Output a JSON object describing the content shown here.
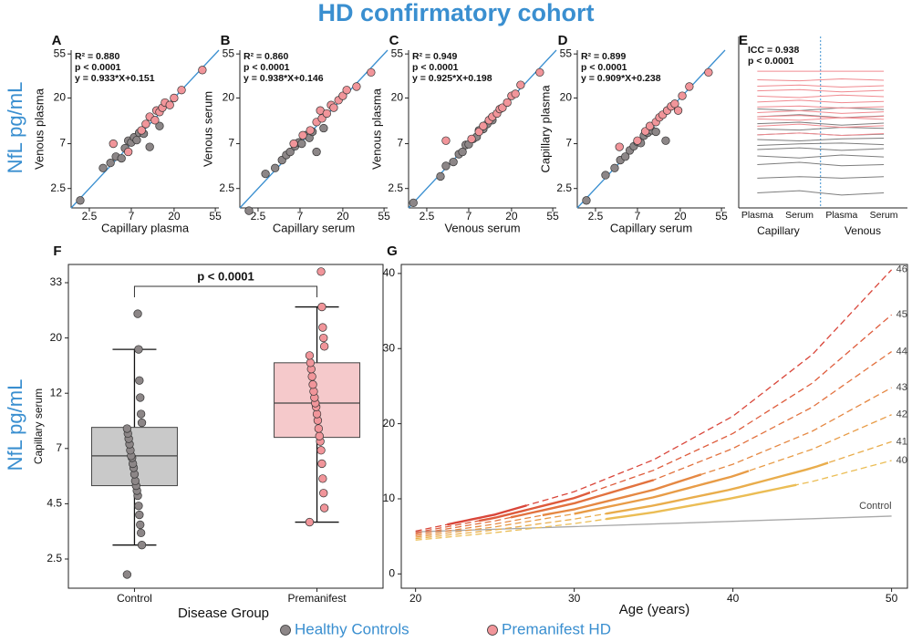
{
  "title": "HD confirmatory cohort",
  "side_labels": [
    "NfL pg/mL",
    "NfL pg/mL"
  ],
  "legend": [
    {
      "name": "Healthy Controls",
      "color": "#8c8687"
    },
    {
      "name": "Premanifest HD",
      "color": "#f1959a"
    }
  ],
  "chart_data": [
    {
      "type": "scatter",
      "panel": "A",
      "xlabel": "Capillary plasma",
      "ylabel": "Venous plasma",
      "log": true,
      "annotations": [
        "R² = 0.880",
        "p < 0.0001",
        "y = 0.933*X+0.151"
      ],
      "xlim": [
        1.6,
        60
      ],
      "ylim": [
        1.6,
        60
      ],
      "xticks": [
        2.5,
        7,
        20,
        55
      ],
      "yticks": [
        2.5,
        7,
        20,
        55
      ],
      "series": [
        {
          "color": "#8c8687",
          "x": [
            2.0,
            3.5,
            4.2,
            4.8,
            5.5,
            6.0,
            6.5,
            7.0,
            7.5,
            8.0,
            8.5,
            9.5,
            11,
            14
          ],
          "y": [
            1.9,
            4.0,
            4.5,
            5.2,
            5.0,
            6.3,
            7.5,
            7.2,
            8.1,
            7.6,
            9.0,
            8.8,
            6.5,
            10.5
          ]
        },
        {
          "color": "#f1959a",
          "x": [
            4.5,
            6.5,
            9,
            10,
            11,
            12.5,
            13,
            14,
            15,
            16,
            18,
            20,
            24,
            40
          ],
          "y": [
            7.0,
            5.8,
            9.5,
            11,
            13,
            12,
            15,
            14.5,
            16,
            18,
            17,
            20,
            24,
            38
          ]
        }
      ]
    },
    {
      "type": "scatter",
      "panel": "B",
      "xlabel": "Capillary serum",
      "ylabel": "Venous serum",
      "log": true,
      "annotations": [
        "R² = 0.860",
        "p < 0.0001",
        "y = 0.938*X+0.146"
      ],
      "xlim": [
        1.6,
        60
      ],
      "ylim": [
        1.6,
        60
      ],
      "xticks": [
        2.5,
        7,
        20,
        55
      ],
      "yticks": [
        2.5,
        7,
        20,
        55
      ],
      "series": [
        {
          "color": "#8c8687",
          "x": [
            2.0,
            3.0,
            3.8,
            4.5,
            5.0,
            5.5,
            6.2,
            6.8,
            7.3,
            8.0,
            8.8,
            9.5,
            10.5,
            12.5
          ],
          "y": [
            1.5,
            3.5,
            4.0,
            4.8,
            5.4,
            5.8,
            6.6,
            7.2,
            7.0,
            8.5,
            8.0,
            9.2,
            5.8,
            10.0
          ]
        },
        {
          "color": "#f1959a",
          "x": [
            6.0,
            7.5,
            9,
            10.5,
            11.5,
            12,
            13.5,
            15,
            16,
            18,
            20,
            22,
            28,
            40
          ],
          "y": [
            7.0,
            8.5,
            9.5,
            11.5,
            15,
            12.5,
            14,
            17,
            16,
            19,
            21,
            24,
            26,
            36
          ]
        }
      ]
    },
    {
      "type": "scatter",
      "panel": "C",
      "xlabel": "Venous serum",
      "ylabel": "Venous plasma",
      "log": true,
      "annotations": [
        "R² = 0.949",
        "p < 0.0001",
        "y = 0.925*X+0.198"
      ],
      "xlim": [
        1.6,
        60
      ],
      "ylim": [
        1.6,
        60
      ],
      "xticks": [
        2.5,
        7,
        20,
        55
      ],
      "yticks": [
        2.5,
        7,
        20,
        55
      ],
      "series": [
        {
          "color": "#8c8687",
          "x": [
            1.8,
            3.5,
            4.0,
            4.8,
            5.5,
            6,
            6.5,
            7,
            7.8,
            8.5,
            9,
            10,
            11,
            12.5
          ],
          "y": [
            1.8,
            3.3,
            4.2,
            4.6,
            5.5,
            5.8,
            6.8,
            6.9,
            7.8,
            8.2,
            9.5,
            9.8,
            11,
            12
          ]
        },
        {
          "color": "#f1959a",
          "x": [
            4.0,
            7.5,
            9,
            10,
            11.5,
            12.5,
            14,
            15,
            16,
            18,
            20,
            22,
            25,
            40
          ],
          "y": [
            7.5,
            7.8,
            9.2,
            10.5,
            12,
            13,
            14,
            15.5,
            16,
            18,
            21,
            22,
            27,
            36
          ]
        }
      ]
    },
    {
      "type": "scatter",
      "panel": "D",
      "xlabel": "Capillary serum",
      "ylabel": "Capillary plasma",
      "log": true,
      "annotations": [
        "R² = 0.899",
        "p < 0.0001",
        "y = 0.909*X+0.238"
      ],
      "xlim": [
        1.6,
        60
      ],
      "ylim": [
        1.6,
        60
      ],
      "xticks": [
        2.5,
        7,
        20,
        55
      ],
      "yticks": [
        2.5,
        7,
        20,
        55
      ],
      "series": [
        {
          "color": "#8c8687",
          "x": [
            2.0,
            3.2,
            4.0,
            4.6,
            5.2,
            5.8,
            6.4,
            7,
            7.6,
            8.2,
            9,
            10,
            11,
            14
          ],
          "y": [
            1.9,
            3.4,
            4.0,
            4.8,
            5.2,
            6.0,
            6.6,
            7.3,
            7.1,
            8.4,
            9,
            9.5,
            9.2,
            7.5
          ]
        },
        {
          "color": "#f1959a",
          "x": [
            4.5,
            7,
            8.5,
            9.5,
            11,
            12,
            13,
            14.5,
            16,
            17.5,
            19,
            21,
            25,
            40
          ],
          "y": [
            6.5,
            7.5,
            9.3,
            10.5,
            11.5,
            12.8,
            13.6,
            15,
            16.5,
            17.5,
            15,
            21,
            26,
            36
          ]
        }
      ]
    },
    {
      "type": "parallel",
      "panel": "E",
      "log": true,
      "annotations": [
        "ICC = 0.938",
        "p < 0.0001"
      ],
      "categories": [
        "Plasma",
        "Serum",
        "Plasma",
        "Serum"
      ],
      "groups": [
        "Capillary",
        "Venous"
      ],
      "ylim": [
        1.6,
        60
      ],
      "series": [
        {
          "color": "#7d7d7d",
          "lines": [
            [
              3.0,
              3.1,
              3.0,
              3.1
            ],
            [
              4.0,
              4.2,
              3.9,
              4.0
            ],
            [
              4.8,
              4.6,
              4.9,
              4.7
            ],
            [
              5.5,
              5.7,
              5.4,
              5.6
            ],
            [
              6.0,
              6.2,
              6.3,
              6.1
            ],
            [
              6.8,
              6.6,
              6.9,
              7.0
            ],
            [
              7.5,
              7.8,
              7.4,
              7.6
            ],
            [
              8.5,
              8.3,
              8.8,
              8.6
            ],
            [
              9.5,
              9.8,
              9.2,
              9.6
            ],
            [
              11,
              11.5,
              10.8,
              11.2
            ],
            [
              13,
              12.5,
              13.3,
              12.8
            ],
            [
              2.2,
              2.3,
              2.1,
              2.2
            ]
          ]
        },
        {
          "color": "#f08a90",
          "lines": [
            [
              7.5,
              7.8,
              7.4,
              7.7
            ],
            [
              9,
              9.4,
              8.8,
              9.1
            ],
            [
              10.5,
              10.2,
              10.8,
              10.4
            ],
            [
              12,
              12.5,
              11.8,
              12.2
            ],
            [
              13.5,
              13.8,
              13.2,
              13.6
            ],
            [
              15,
              15.6,
              14.8,
              15.2
            ],
            [
              17,
              16.5,
              17.4,
              16.8
            ],
            [
              19,
              19.5,
              18.6,
              19.2
            ],
            [
              21,
              21.5,
              20.6,
              21.2
            ],
            [
              24,
              23.5,
              24.5,
              23.8
            ],
            [
              28.8,
              28.8,
              28.8,
              28.8
            ],
            [
              11,
              11.3,
              10.7,
              11.1
            ]
          ]
        }
      ]
    },
    {
      "type": "box",
      "panel": "F",
      "xlabel": "Disease Group",
      "ylabel": "Capillary serum",
      "log": true,
      "annotation": "p < 0.0001",
      "ylim": [
        1.8,
        38.8
      ],
      "yticks": [
        2.5,
        4.5,
        7,
        12,
        20,
        33
      ],
      "groups": [
        {
          "name": "Control",
          "color": "#8c8687",
          "box_color": "#c9c9c9",
          "whisker_low": 2.9,
          "q1": 5.2,
          "median": 6.6,
          "q3": 8.6,
          "whisker_high": 18,
          "points": [
            2.1,
            2.9,
            3.3,
            3.6,
            4.0,
            4.4,
            4.8,
            5.0,
            5.2,
            5.4,
            5.7,
            6.0,
            6.2,
            6.5,
            6.6,
            6.9,
            7.3,
            7.7,
            8.1,
            8.5,
            9.0,
            9.8,
            11.5,
            13.5,
            18,
            24.9
          ]
        },
        {
          "name": "Premanifest",
          "color": "#f1959a",
          "box_color": "#f5c9cb",
          "whisker_low": 3.7,
          "q1": 7.8,
          "median": 10.9,
          "q3": 15.9,
          "whisker_high": 26.5,
          "points": [
            3.7,
            4.3,
            4.9,
            5.5,
            6.2,
            6.9,
            7.5,
            7.9,
            8.5,
            9.2,
            9.8,
            10.5,
            10.9,
            11.5,
            12.2,
            13,
            14,
            15,
            15.9,
            17,
            18.5,
            20,
            22,
            26.5,
            36.4
          ]
        }
      ]
    },
    {
      "type": "line",
      "panel": "G",
      "xlabel": "Age (years)",
      "xlim": [
        19.1,
        51
      ],
      "ylim": [
        -1.9,
        41.2
      ],
      "xticks": [
        20,
        30,
        40,
        50
      ],
      "yticks": [
        0,
        10,
        20,
        30,
        40
      ],
      "x": [
        20,
        25,
        30,
        35,
        40,
        45,
        50
      ],
      "series": [
        {
          "name": "Control",
          "color": "#a9a9a9",
          "style": "solid",
          "values": [
            5.6,
            5.95,
            6.3,
            6.65,
            7.0,
            7.35,
            7.7
          ]
        },
        {
          "name": "40",
          "color": "#ebbd55",
          "style": "dashed",
          "solid_x": [
            32,
            44
          ],
          "values": [
            4.5,
            5.5,
            6.7,
            8.2,
            10.1,
            12.3,
            15.1
          ]
        },
        {
          "name": "41",
          "color": "#e9ad4c",
          "style": "dashed",
          "solid_x": [
            32,
            46
          ],
          "values": [
            4.7,
            5.86,
            7.3,
            9.1,
            11.3,
            14.1,
            17.6
          ]
        },
        {
          "name": "42",
          "color": "#e89c47",
          "style": "dashed",
          "solid_x": [
            30,
            41
          ],
          "values": [
            4.9,
            6.26,
            8.0,
            10.2,
            13.0,
            16.6,
            21.2
          ]
        },
        {
          "name": "43",
          "color": "#e58843",
          "style": "dashed",
          "solid_x": [
            28,
            38
          ],
          "values": [
            5.1,
            6.64,
            8.6,
            11.2,
            14.6,
            19.0,
            24.8
          ]
        },
        {
          "name": "44",
          "color": "#e2723f",
          "style": "dashed",
          "solid_x": [
            26,
            35
          ],
          "values": [
            5.3,
            7.06,
            9.4,
            12.5,
            16.7,
            22.2,
            29.6
          ]
        },
        {
          "name": "45",
          "color": "#de5c3c",
          "style": "dashed",
          "solid_x": [
            24,
            31
          ],
          "values": [
            5.5,
            7.47,
            10.1,
            13.8,
            18.7,
            25.4,
            34.5
          ]
        },
        {
          "name": "46",
          "color": "#d9463a",
          "style": "dashed",
          "solid_x": [
            22,
            27
          ],
          "values": [
            5.7,
            7.9,
            10.95,
            15.2,
            21.0,
            29.2,
            40.5
          ]
        }
      ]
    }
  ]
}
